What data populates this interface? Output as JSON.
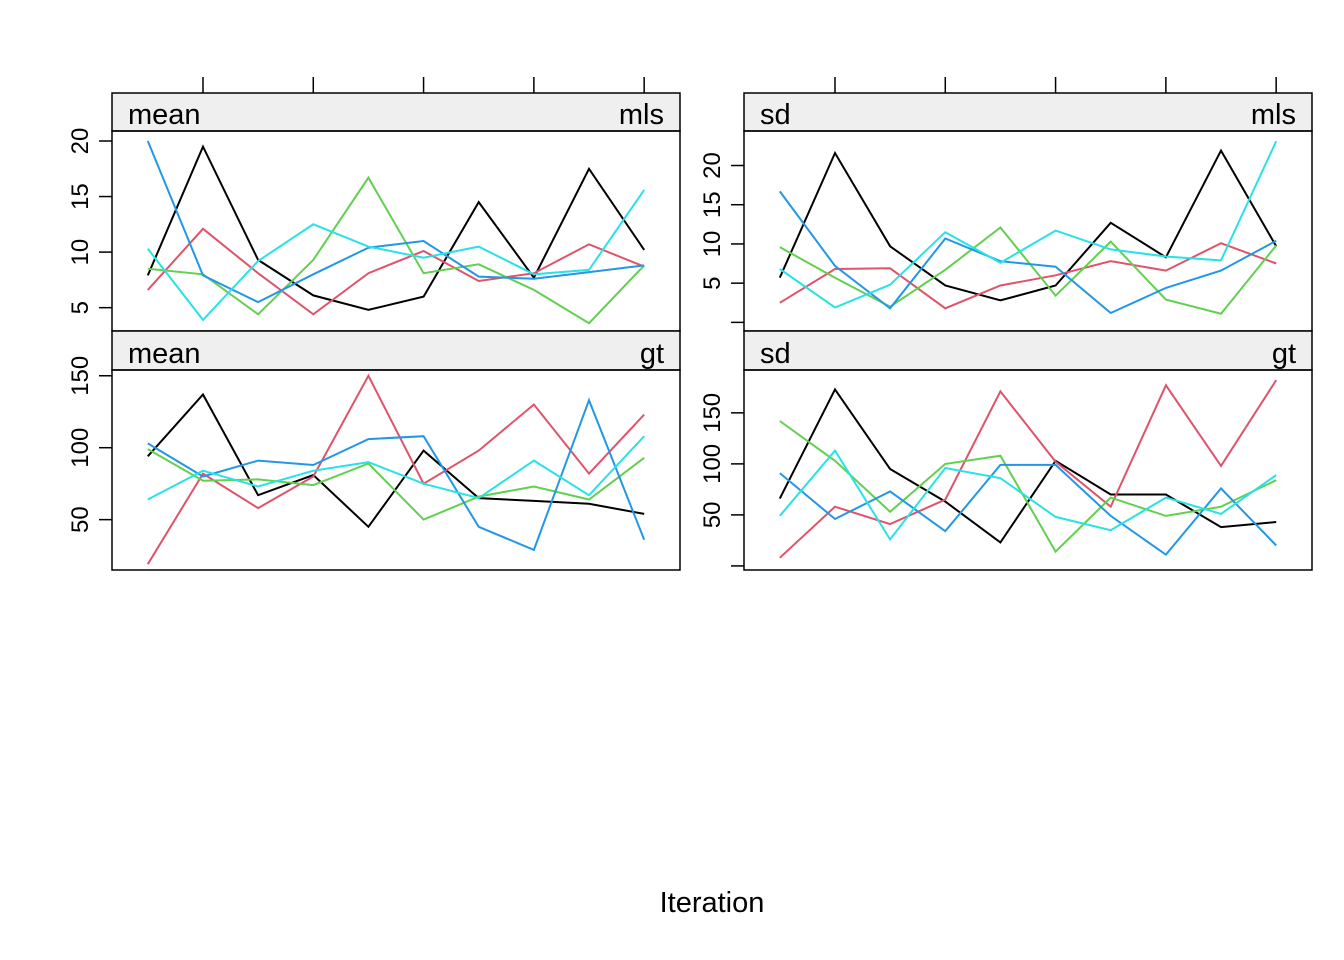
{
  "chart_data": {
    "type": "line",
    "xlabel": "Iteration",
    "x": [
      1,
      2,
      3,
      4,
      5,
      6,
      7,
      8,
      9,
      10
    ],
    "x_axis_ticks": "unlabeled, at x = 2, 4, 6, 8, 10 (top of each column)",
    "series_colors": [
      "#000000",
      "#DF536B",
      "#61D04F",
      "#2297E6",
      "#28E2E5"
    ],
    "panels": [
      {
        "id": "mean-mls",
        "stat": "mean",
        "variable": "mls",
        "ylim": [
          2.9,
          20.9
        ],
        "yticks": [
          5,
          10,
          15,
          20
        ],
        "series": [
          {
            "values": [
              7.9,
              19.5,
              9.3,
              6.1,
              4.8,
              6.0,
              14.5,
              7.7,
              17.5,
              10.2
            ]
          },
          {
            "values": [
              6.6,
              12.1,
              8.1,
              4.4,
              8.1,
              10.1,
              7.4,
              8.1,
              10.7,
              8.7
            ]
          },
          {
            "values": [
              8.5,
              8.0,
              4.4,
              9.3,
              16.7,
              8.1,
              8.9,
              6.6,
              3.6,
              8.8
            ]
          },
          {
            "values": [
              20.0,
              7.9,
              5.5,
              8.0,
              10.4,
              11.0,
              7.8,
              7.6,
              8.2,
              8.8
            ]
          },
          {
            "values": [
              10.3,
              3.9,
              9.2,
              12.5,
              10.5,
              9.5,
              10.5,
              8.0,
              8.4,
              15.6
            ]
          }
        ]
      },
      {
        "id": "sd-mls",
        "stat": "sd",
        "variable": "mls",
        "ylim": [
          -1.1,
          24.4
        ],
        "yticks": [
          0,
          5,
          10,
          15,
          20
        ],
        "ytick_labels": [
          "",
          "5",
          "10",
          "15",
          "20"
        ],
        "series": [
          {
            "values": [
              5.7,
              21.6,
              9.7,
              4.7,
              2.8,
              4.7,
              12.7,
              8.3,
              21.9,
              9.7
            ]
          },
          {
            "values": [
              2.5,
              6.8,
              6.9,
              1.8,
              4.7,
              6.0,
              7.8,
              6.6,
              10.1,
              7.5
            ]
          },
          {
            "values": [
              9.6,
              5.7,
              2.0,
              6.7,
              12.1,
              3.4,
              10.3,
              2.9,
              1.1,
              9.8
            ]
          },
          {
            "values": [
              16.7,
              7.2,
              1.8,
              10.7,
              7.8,
              7.1,
              1.2,
              4.4,
              6.6,
              10.4
            ]
          },
          {
            "values": [
              6.8,
              1.9,
              4.8,
              11.5,
              7.6,
              11.7,
              9.3,
              8.4,
              7.9,
              23.1
            ]
          }
        ]
      },
      {
        "id": "mean-gt",
        "stat": "mean",
        "variable": "gt",
        "ylim": [
          15,
          154
        ],
        "yticks": [
          50,
          100,
          150
        ],
        "series": [
          {
            "values": [
              94,
              137,
              67,
              81,
              45,
              98,
              65,
              63,
              61,
              54
            ]
          },
          {
            "values": [
              19,
              82,
              58,
              80,
              150,
              75,
              98,
              130,
              82,
              123
            ]
          },
          {
            "values": [
              99,
              77,
              78,
              74,
              89,
              50,
              66,
              73,
              64,
              93
            ]
          },
          {
            "values": [
              103,
              80,
              91,
              88,
              106,
              108,
              45,
              29,
              133,
              36
            ]
          },
          {
            "values": [
              64,
              84,
              73,
              84,
              90,
              75,
              65,
              91,
              67,
              108
            ]
          }
        ]
      },
      {
        "id": "sd-gt",
        "stat": "sd",
        "variable": "gt",
        "ylim": [
          -4,
          192
        ],
        "yticks": [
          0,
          50,
          100,
          150
        ],
        "ytick_labels": [
          "",
          "50",
          "100",
          "150"
        ],
        "series": [
          {
            "values": [
              66,
              173,
              95,
              63,
              23,
              103,
              70,
              70,
              38,
              43
            ]
          },
          {
            "values": [
              8,
              58,
              41,
              65,
              171,
              102,
              58,
              177,
              98,
              182
            ]
          },
          {
            "values": [
              142,
              103,
              53,
              100,
              108,
              14,
              67,
              49,
              58,
              84
            ]
          },
          {
            "values": [
              91,
              46,
              73,
              34,
              99,
              99,
              49,
              11,
              76,
              20
            ]
          },
          {
            "values": [
              49,
              113,
              26,
              96,
              86,
              48,
              35,
              67,
              51,
              89
            ]
          }
        ]
      }
    ]
  }
}
